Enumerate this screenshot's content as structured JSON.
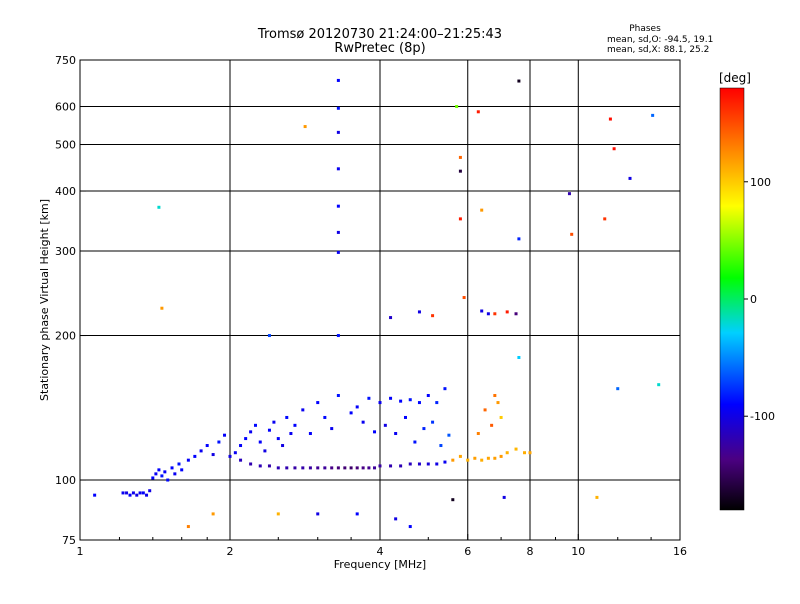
{
  "header": {
    "title_line1": "Tromsø 20120730 21:24:00–21:25:43",
    "title_line2": "RwPretec (8p)",
    "stats_heading": "Phases",
    "stats_o": "mean, sd,O: -94.5, 19.1",
    "stats_x": "mean, sd,X: 88.1, 25.2"
  },
  "colorbar": {
    "label": "[deg]",
    "ticks": [
      {
        "value": 100,
        "label": "100"
      },
      {
        "value": 0,
        "label": "0"
      },
      {
        "value": -100,
        "label": "-100"
      }
    ],
    "range": [
      -180,
      180
    ]
  },
  "chart_data": {
    "type": "scatter",
    "title": "Tromsø 20120730 21:24:00–21:25:43",
    "subtitle": "RwPretec (8p)",
    "xlabel": "Frequency [MHz]",
    "ylabel": "Stationary phase Virtual Height [km]",
    "x_scale": "log",
    "y_scale": "log",
    "xlim": [
      1,
      16
    ],
    "ylim": [
      75,
      750
    ],
    "xticks": [
      1,
      2,
      4,
      6,
      8,
      10,
      16
    ],
    "xtick_labels": [
      "1",
      "2",
      "4",
      "6",
      "8",
      "10",
      "16"
    ],
    "x_gridlines": [
      2,
      4,
      6,
      8,
      10
    ],
    "yticks": [
      75,
      100,
      200,
      300,
      400,
      500,
      600,
      750
    ],
    "ytick_labels": [
      "75",
      "100",
      "200",
      "300",
      "400",
      "500",
      "600",
      "750"
    ],
    "y_gridlines": [
      100,
      200,
      300,
      400,
      500,
      600
    ],
    "grid": true,
    "color_scale": {
      "label": "[deg]",
      "min": -180,
      "max": 180
    },
    "points": [
      [
        1.07,
        93,
        -90
      ],
      [
        1.22,
        94,
        -95
      ],
      [
        1.24,
        94,
        -100
      ],
      [
        1.26,
        93,
        -92
      ],
      [
        1.28,
        94,
        -98
      ],
      [
        1.3,
        93,
        -100
      ],
      [
        1.32,
        94,
        -95
      ],
      [
        1.34,
        94,
        -92
      ],
      [
        1.36,
        93,
        -98
      ],
      [
        1.38,
        95,
        -100
      ],
      [
        1.4,
        101,
        -90
      ],
      [
        1.42,
        103,
        -95
      ],
      [
        1.44,
        105,
        -90
      ],
      [
        1.46,
        102,
        -85
      ],
      [
        1.48,
        104,
        -92
      ],
      [
        1.5,
        100,
        -88
      ],
      [
        1.53,
        106,
        -90
      ],
      [
        1.55,
        103,
        -95
      ],
      [
        1.58,
        108,
        -85
      ],
      [
        1.6,
        105,
        -90
      ],
      [
        1.65,
        110,
        -92
      ],
      [
        1.7,
        112,
        -90
      ],
      [
        1.75,
        115,
        -95
      ],
      [
        1.8,
        118,
        -90
      ],
      [
        1.85,
        113,
        -100
      ],
      [
        1.9,
        120,
        -85
      ],
      [
        1.95,
        124,
        -92
      ],
      [
        2.0,
        112,
        -100
      ],
      [
        2.05,
        114,
        -95
      ],
      [
        2.1,
        118,
        -92
      ],
      [
        2.15,
        122,
        -90
      ],
      [
        2.2,
        126,
        -95
      ],
      [
        2.25,
        130,
        -88
      ],
      [
        2.3,
        120,
        -92
      ],
      [
        2.35,
        115,
        -100
      ],
      [
        2.4,
        127,
        -90
      ],
      [
        2.45,
        132,
        -95
      ],
      [
        2.5,
        122,
        -92
      ],
      [
        2.55,
        118,
        -100
      ],
      [
        2.6,
        135,
        -88
      ],
      [
        2.65,
        125,
        -95
      ],
      [
        2.1,
        110,
        -115
      ],
      [
        2.2,
        108,
        -120
      ],
      [
        2.3,
        107,
        -118
      ],
      [
        2.4,
        107,
        -122
      ],
      [
        2.5,
        106,
        -118
      ],
      [
        2.6,
        106,
        -120
      ],
      [
        2.7,
        106,
        -124
      ],
      [
        2.8,
        106,
        -122
      ],
      [
        2.9,
        106,
        -126
      ],
      [
        3.0,
        106,
        -130
      ],
      [
        3.1,
        106,
        -128
      ],
      [
        3.2,
        106,
        -135
      ],
      [
        3.3,
        106,
        -140
      ],
      [
        3.4,
        106,
        -142
      ],
      [
        3.5,
        106,
        -145
      ],
      [
        3.6,
        106,
        -140
      ],
      [
        3.7,
        106,
        -135
      ],
      [
        3.8,
        106,
        -132
      ],
      [
        3.9,
        106,
        -128
      ],
      [
        4.0,
        107,
        -125
      ],
      [
        4.2,
        107,
        -120
      ],
      [
        4.4,
        107,
        -118
      ],
      [
        4.6,
        108,
        -115
      ],
      [
        4.8,
        108,
        -110
      ],
      [
        5.0,
        108,
        -105
      ],
      [
        5.2,
        108,
        -100
      ],
      [
        5.4,
        109,
        -95
      ],
      [
        2.7,
        130,
        -90
      ],
      [
        2.8,
        140,
        -95
      ],
      [
        2.9,
        125,
        -92
      ],
      [
        3.0,
        145,
        -90
      ],
      [
        3.1,
        135,
        -88
      ],
      [
        3.2,
        128,
        -95
      ],
      [
        3.3,
        150,
        -85
      ],
      [
        3.5,
        138,
        -90
      ],
      [
        3.6,
        142,
        -92
      ],
      [
        3.7,
        132,
        -95
      ],
      [
        3.8,
        148,
        -85
      ],
      [
        3.9,
        126,
        -90
      ],
      [
        4.0,
        145,
        -95
      ],
      [
        4.2,
        148,
        -92
      ],
      [
        4.4,
        146,
        -90
      ],
      [
        4.6,
        147,
        -85
      ],
      [
        4.8,
        145,
        -88
      ],
      [
        5.0,
        150,
        -90
      ],
      [
        5.2,
        145,
        -80
      ],
      [
        5.4,
        155,
        -85
      ],
      [
        4.1,
        130,
        -100
      ],
      [
        4.3,
        125,
        -95
      ],
      [
        4.5,
        135,
        -90
      ],
      [
        4.7,
        120,
        -85
      ],
      [
        4.9,
        128,
        -80
      ],
      [
        5.1,
        132,
        -75
      ],
      [
        5.3,
        118,
        -70
      ],
      [
        5.5,
        124,
        -65
      ],
      [
        5.6,
        110,
        120
      ],
      [
        5.8,
        112,
        115
      ],
      [
        6.0,
        110,
        110
      ],
      [
        6.2,
        111,
        118
      ],
      [
        6.4,
        110,
        112
      ],
      [
        6.6,
        111,
        115
      ],
      [
        6.8,
        111,
        118
      ],
      [
        7.0,
        112,
        120
      ],
      [
        7.2,
        114,
        110
      ],
      [
        7.5,
        116,
        108
      ],
      [
        7.8,
        114,
        112
      ],
      [
        8.0,
        114,
        115
      ],
      [
        6.3,
        125,
        130
      ],
      [
        6.5,
        140,
        140
      ],
      [
        6.7,
        130,
        145
      ],
      [
        6.8,
        150,
        135
      ],
      [
        6.9,
        145,
        120
      ],
      [
        7.0,
        135,
        100
      ],
      [
        3.3,
        680,
        -90
      ],
      [
        3.3,
        595,
        -85
      ],
      [
        3.3,
        530,
        -100
      ],
      [
        3.3,
        445,
        -95
      ],
      [
        3.3,
        372,
        -90
      ],
      [
        3.3,
        328,
        -100
      ],
      [
        3.3,
        298,
        -95
      ],
      [
        3.3,
        200,
        -85
      ],
      [
        5.7,
        600,
        45
      ],
      [
        5.8,
        470,
        140
      ],
      [
        5.8,
        440,
        -160
      ],
      [
        5.8,
        350,
        170
      ],
      [
        5.9,
        240,
        150
      ],
      [
        6.3,
        585,
        170
      ],
      [
        6.4,
        365,
        120
      ],
      [
        7.6,
        678,
        -170
      ],
      [
        7.6,
        318,
        -80
      ],
      [
        11.3,
        350,
        160
      ],
      [
        11.6,
        565,
        175
      ],
      [
        11.8,
        490,
        175
      ],
      [
        12.7,
        425,
        -100
      ],
      [
        14.1,
        575,
        -60
      ],
      [
        9.6,
        395,
        -120
      ],
      [
        9.7,
        325,
        150
      ],
      [
        1.44,
        370,
        -20
      ],
      [
        1.46,
        228,
        120
      ],
      [
        2.4,
        200,
        -70
      ],
      [
        2.83,
        545,
        120
      ],
      [
        6.4,
        225,
        -100
      ],
      [
        6.6,
        222,
        -100
      ],
      [
        6.8,
        222,
        160
      ],
      [
        7.2,
        224,
        170
      ],
      [
        7.5,
        222,
        -140
      ],
      [
        5.1,
        220,
        160
      ],
      [
        4.8,
        224,
        -100
      ],
      [
        4.2,
        218,
        -110
      ],
      [
        7.6,
        180,
        -30
      ],
      [
        12.0,
        155,
        -60
      ],
      [
        14.5,
        158,
        -20
      ],
      [
        1.65,
        80,
        130
      ],
      [
        1.85,
        85,
        120
      ],
      [
        2.5,
        85,
        110
      ],
      [
        3.0,
        85,
        -100
      ],
      [
        3.6,
        85,
        -90
      ],
      [
        4.3,
        83,
        -100
      ],
      [
        4.6,
        80,
        -90
      ],
      [
        5.6,
        91,
        -170
      ],
      [
        7.1,
        92,
        -100
      ],
      [
        10.9,
        92,
        110
      ]
    ]
  }
}
